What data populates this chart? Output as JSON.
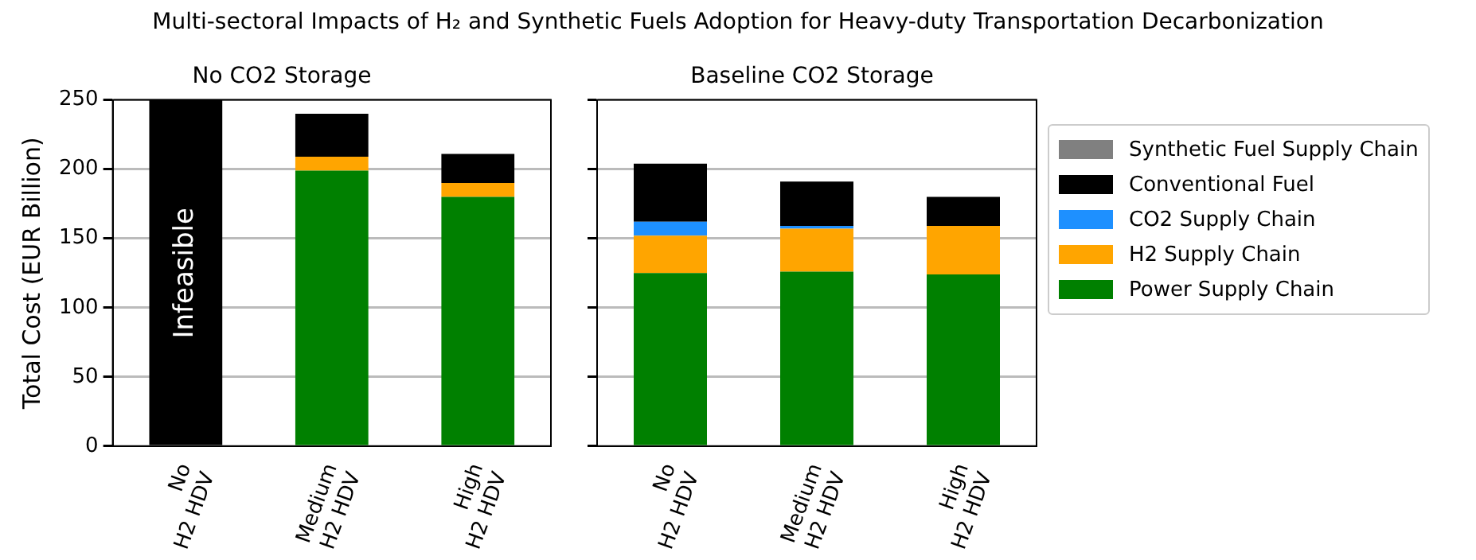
{
  "chart_data": [
    {
      "type": "bar",
      "title": "Multi-sectoral Impacts of H₂ and Synthetic Fuels Adoption for Heavy-duty Transportation Decarbonization",
      "subtitle": "No CO2 Storage",
      "ylabel": "Total Cost (EUR Billion)",
      "categories": [
        "No H2 HDV",
        "Medium H2 HDV",
        "High H2 HDV"
      ],
      "stacked": true,
      "ylim": [
        0,
        250
      ],
      "yticks": [
        0,
        50,
        100,
        150,
        200,
        250
      ],
      "grid": "y",
      "series": [
        {
          "color": "#008000",
          "values": [
            0,
            199,
            180
          ]
        },
        {
          "color": "#ffa500",
          "values": [
            0,
            10,
            10
          ]
        },
        {
          "color": "#1e90ff",
          "values": [
            0,
            0,
            0
          ]
        },
        {
          "color": "#000000",
          "values": [
            250,
            31,
            21
          ]
        },
        {
          "color": "#808080",
          "values": [
            0,
            0,
            0
          ]
        }
      ],
      "annotations": [
        "Infeasible"
      ]
    },
    {
      "type": "bar",
      "subtitle": "Baseline CO2 Storage",
      "categories": [
        "No H2 HDV",
        "Medium H2 HDV",
        "High H2 HDV"
      ],
      "stacked": true,
      "ylim": [
        0,
        250
      ],
      "yticks": [
        0,
        50,
        100,
        150,
        200,
        250
      ],
      "grid": "y",
      "legend": "right",
      "tick_labels": "x",
      "series": [
        {
          "name": "Power Supply Chain",
          "color": "#008000",
          "values": [
            125,
            126,
            124
          ]
        },
        {
          "name": "H2 Supply Chain",
          "color": "#ffa500",
          "values": [
            27,
            31,
            35
          ]
        },
        {
          "name": "CO2 Supply Chain",
          "color": "#1e90ff",
          "values": [
            10,
            2,
            0
          ]
        },
        {
          "name": "Conventional Fuel",
          "color": "#000000",
          "values": [
            42,
            32,
            21
          ]
        },
        {
          "name": "Synthetic Fuel Supply Chain",
          "color": "#808080",
          "values": [
            0,
            0,
            0
          ]
        }
      ]
    }
  ]
}
